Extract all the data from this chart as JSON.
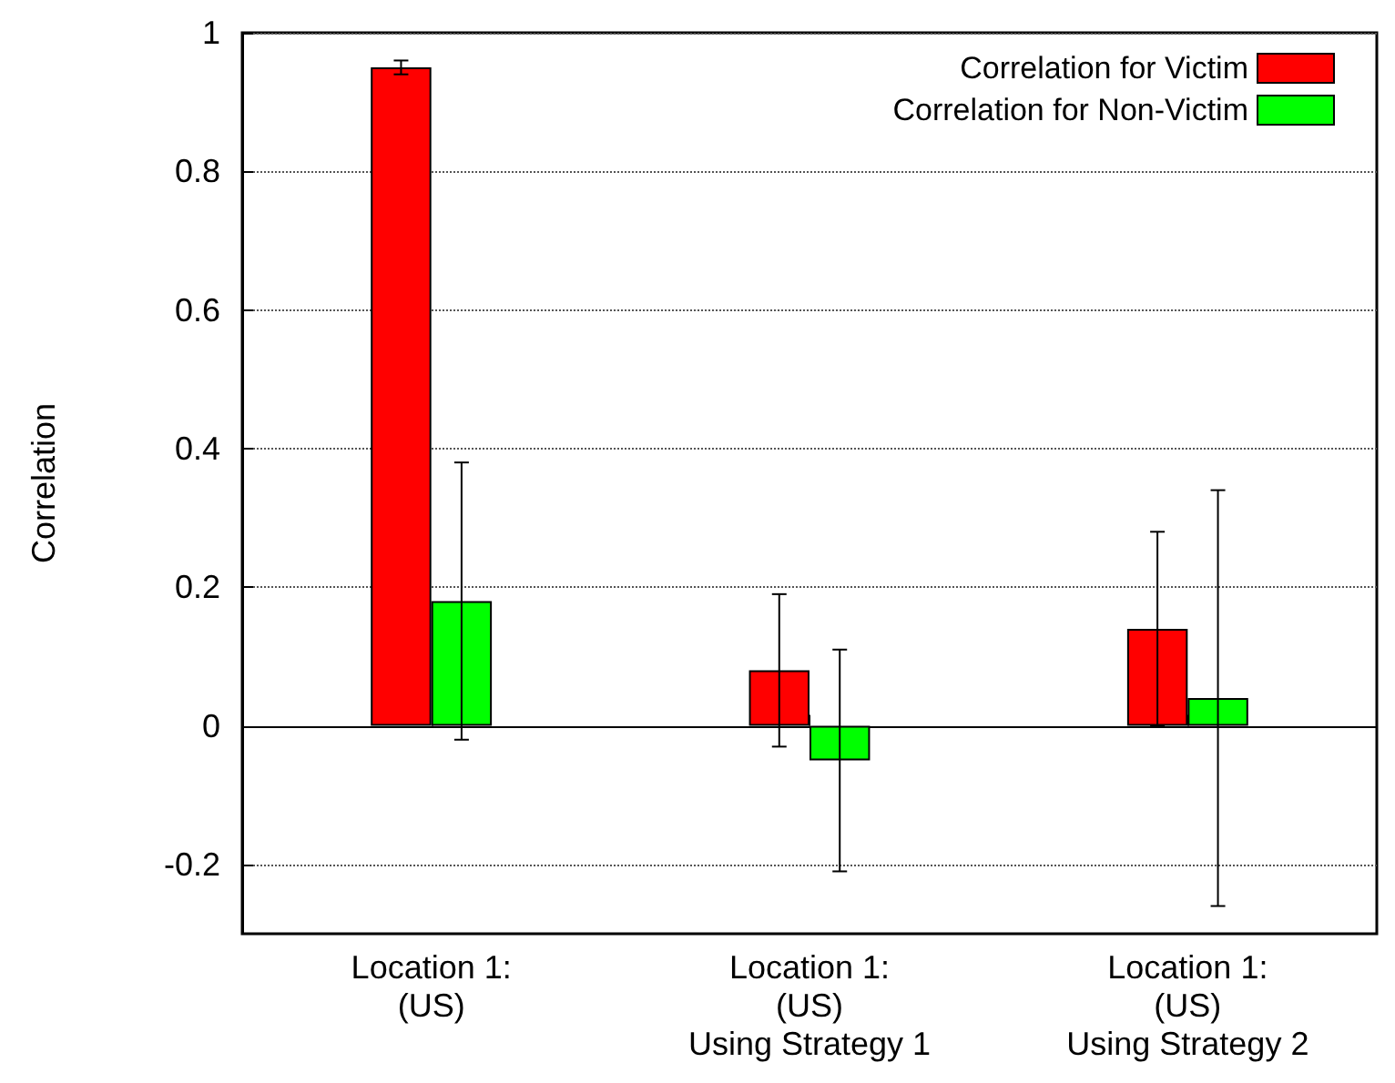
{
  "chart_data": {
    "type": "bar",
    "ylabel": "Correlation",
    "categories": [
      "Location 1:\n(US)",
      "Location 1:\n(US)\nUsing Strategy 1",
      "Location 1:\n(US)\nUsing Strategy 2"
    ],
    "series": [
      {
        "name": "Correlation for Victim",
        "color": "#ff0000",
        "values": [
          0.95,
          0.08,
          0.14
        ],
        "errors": [
          [
            0.94,
            0.96
          ],
          [
            -0.03,
            0.19
          ],
          [
            0.0,
            0.28
          ]
        ]
      },
      {
        "name": "Correlation for Non-Victim",
        "color": "#00ff00",
        "values": [
          0.18,
          -0.05,
          0.04
        ],
        "errors": [
          [
            -0.02,
            0.38
          ],
          [
            -0.21,
            0.11
          ],
          [
            -0.26,
            0.34
          ]
        ]
      }
    ],
    "ylim": [
      -0.3,
      1
    ],
    "yticks": [
      -0.2,
      0,
      0.2,
      0.4,
      0.6,
      0.8,
      1
    ],
    "grid": "y",
    "legend": "top right"
  }
}
